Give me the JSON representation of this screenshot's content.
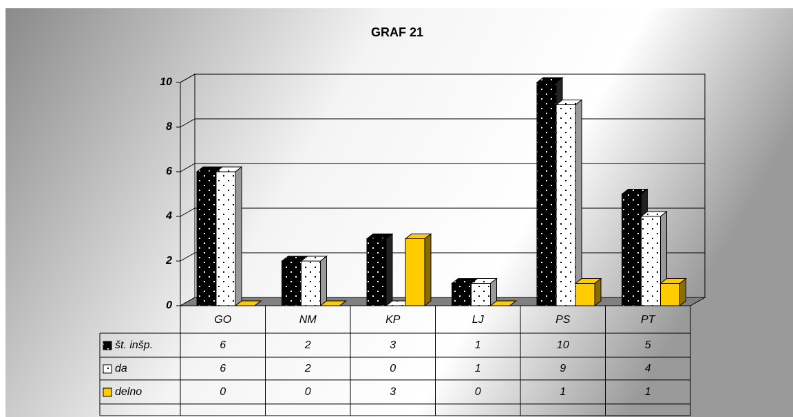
{
  "chart_data": {
    "type": "bar3d",
    "title": "GRAF 21",
    "categories": [
      "GO",
      "NM",
      "KP",
      "LJ",
      "PS",
      "PT"
    ],
    "series": [
      {
        "name": "št. inšp.",
        "color": "#000000",
        "values": [
          6,
          2,
          3,
          1,
          10,
          5
        ]
      },
      {
        "name": "da",
        "color": "#ffffff",
        "values": [
          6,
          2,
          0,
          1,
          9,
          4
        ]
      },
      {
        "name": "delno",
        "color": "#ffcc00",
        "values": [
          0,
          0,
          3,
          0,
          1,
          1
        ]
      }
    ],
    "ylim": [
      0,
      10
    ],
    "yticks": [
      0,
      2,
      4,
      6,
      8,
      10
    ],
    "grid": true,
    "data_table": true
  }
}
